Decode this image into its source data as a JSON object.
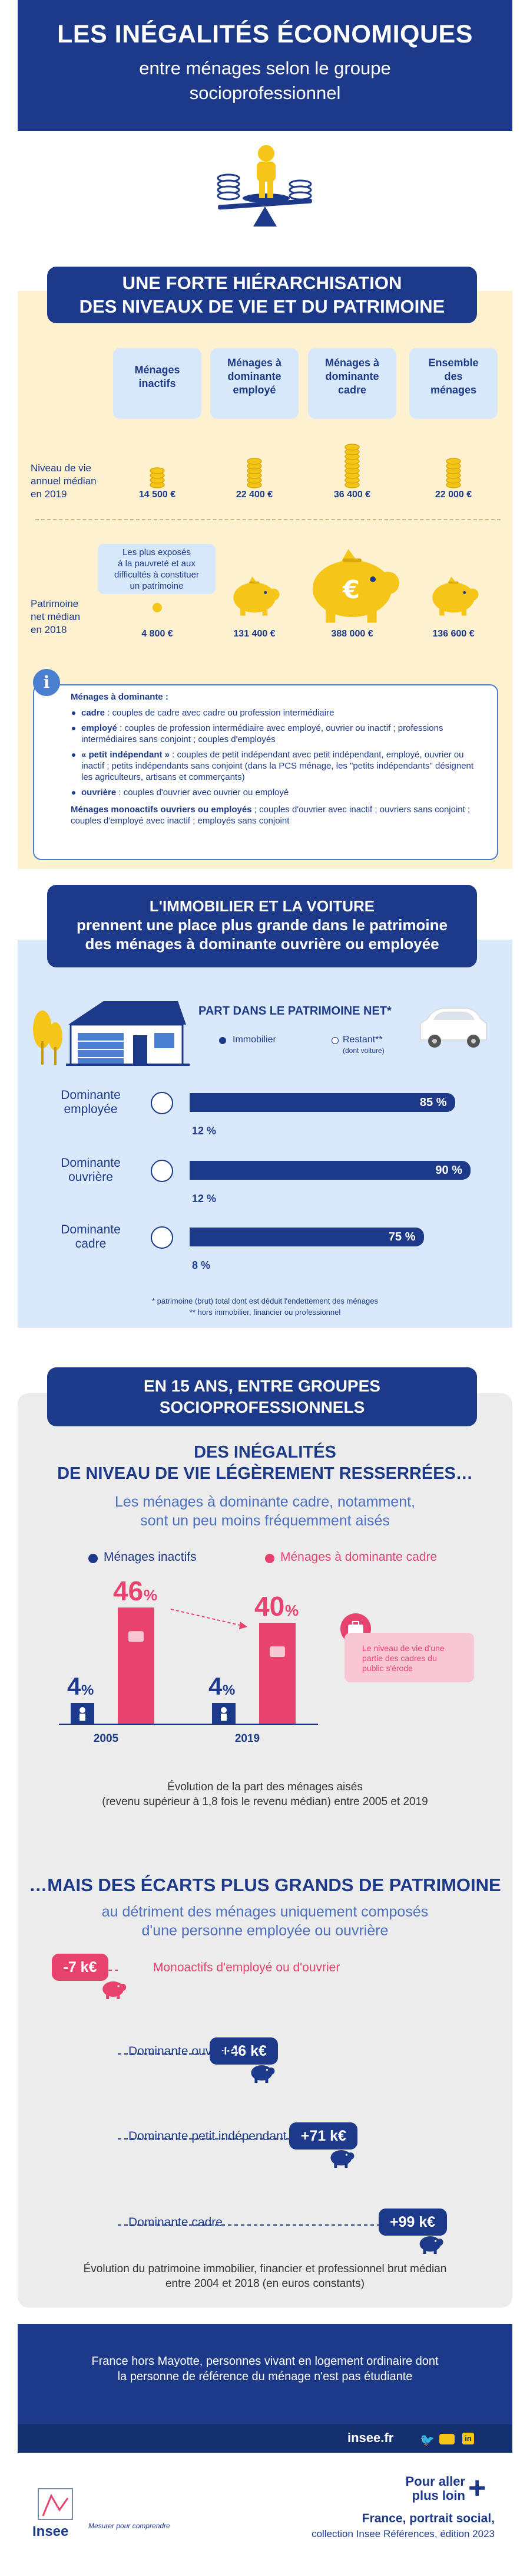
{
  "header": {
    "title": "LES INÉGALITÉS ÉCONOMIQUES",
    "subtitle_line1": "entre ménages selon le groupe",
    "subtitle_line2": "socioprofessionnel"
  },
  "section1": {
    "title_line1": "UNE FORTE HIÉRARCHISATION",
    "title_line2": "DES NIVEAUX DE VIE ET DU PATRIMOINE",
    "categories": [
      {
        "line1": "Ménages",
        "line2": "inactifs",
        "line3": ""
      },
      {
        "line1": "Ménages à",
        "line2": "dominante",
        "line3": "employé"
      },
      {
        "line1": "Ménages à",
        "line2": "dominante",
        "line3": "cadre"
      },
      {
        "line1": "Ensemble",
        "line2": "des",
        "line3": "ménages"
      }
    ],
    "niveau_label": [
      "Niveau de vie",
      "annuel médian",
      "en 2019"
    ],
    "niveau_values": [
      "14 500 €",
      "22 400 €",
      "36 400 €",
      "22 000 €"
    ],
    "patrimoine_label": [
      "Patrimoine",
      "net médian",
      "en 2018"
    ],
    "patrimoine_values": [
      "4 800 €",
      "131 400 €",
      "388 000 €",
      "136 600 €"
    ],
    "exposed_note": [
      "Les plus exposés",
      "à la pauvreté et aux",
      "difficultés à constituer",
      "un patrimoine"
    ],
    "info_title": "Ménages à dominante :",
    "info_items": [
      {
        "key": "cadre",
        "text": " : couples de cadre avec cadre ou profession intermédiaire"
      },
      {
        "key": "employé",
        "text": " : couples de profession intermédiaire avec employé, ouvrier ou inactif ; professions intermédiaires sans conjoint ; couples d'employés"
      },
      {
        "key": "« petit indépendant »",
        "text": " : couples de petit indépendant avec petit indépendant, employé, ouvrier ou inactif ; petits indépendants sans conjoint (dans la PCS ménage, les \"petits indépendants\" désignent les agriculteurs, artisans et commerçants)"
      },
      {
        "key": "ouvrière",
        "text": " : couples d'ouvrier avec ouvrier ou employé"
      }
    ],
    "info_footer_key": "Ménages monoactifs ouvriers ou employés",
    "info_footer_text": " ; couples d'ouvrier avec inactif ; ouvriers sans conjoint ; couples d'employé avec inactif ; employés sans conjoint"
  },
  "section2": {
    "title_line1": "L'IMMOBILIER ET LA VOITURE",
    "title_line2": "prennent une place plus grande dans le patrimoine",
    "title_line3": "des ménages à dominante ouvrière ou employée",
    "chart_title": "PART DANS LE PATRIMOINE NET*",
    "legend_immobilier": "Immobilier",
    "legend_restant": "Restant**",
    "legend_restant_sub": "(dont voiture)",
    "notes": [
      "* patrimoine (brut) total dont est déduit l'endettement des ménages",
      "** hors immobilier, financier ou professionnel"
    ],
    "colors": {
      "immobilier": "#1d3a8a"
    }
  },
  "section3": {
    "title_line1": "EN 15 ANS, ENTRE GROUPES",
    "title_line2": "SOCIOPROFESSIONNELS",
    "subtitle_line1": "DES INÉGALITÉS",
    "subtitle_line2": "DE NIVEAU DE VIE LÉGÈREMENT RESSERRÉES…",
    "lead_line1": "Les ménages à dominante cadre, notamment,",
    "lead_line2": "sont un peu moins fréquemment aisés",
    "legend_inactifs": "Ménages inactifs",
    "legend_cadre": "Ménages à dominante cadre",
    "callout": [
      "Le niveau de vie d'une",
      "partie des cadres du",
      "public s'érode"
    ],
    "caption_line1": "Évolution de la part des ménages aisés",
    "caption_line2": "(revenu supérieur à 1,8 fois le revenu médian) entre 2005 et 2019",
    "colors": {
      "inactifs": "#1d3a8a",
      "cadre": "#e8436f"
    }
  },
  "section4": {
    "title": "…MAIS DES ÉCARTS PLUS GRANDS DE PATRIMOINE",
    "subtitle_line1": "au détriment des ménages uniquement composés",
    "subtitle_line2": "d'une personne employée ou ouvrière",
    "caption_line1": "Évolution du patrimoine immobilier, financier et professionnel brut médian",
    "caption_line2": "entre 2004 et 2018 (en euros constants)"
  },
  "footer": {
    "scope_line1": "France hors Mayotte, personnes vivant en logement ordinaire dont",
    "scope_line2": "la personne de référence du ménage n'est pas étudiante",
    "site": "insee.fr",
    "more_line1": "Pour aller",
    "more_line2": "plus loin",
    "pub_line1": "France, portrait social,",
    "pub_line2": "collection Insee Références, édition 2023",
    "logo": "Insee",
    "tagline": "Mesurer pour comprendre"
  },
  "chart_data": [
    {
      "type": "bar",
      "categories": [
        "Dominante employée",
        "Dominante ouvrière",
        "Dominante cadre"
      ],
      "series": [
        {
          "name": "Immobilier",
          "values": [
            85,
            90,
            75
          ]
        },
        {
          "name": "Restant** (dont voiture)",
          "values": [
            12,
            12,
            8
          ]
        }
      ],
      "unit": "%"
    },
    {
      "type": "bar",
      "categories": [
        "2005",
        "2019"
      ],
      "series": [
        {
          "name": "Ménages inactifs",
          "values": [
            4,
            4
          ]
        },
        {
          "name": "Ménages à dominante cadre",
          "values": [
            46,
            40
          ]
        }
      ],
      "unit": "%"
    },
    {
      "type": "bar",
      "categories": [
        "Monoactifs d'employé ou d'ouvrier",
        "Dominante ouvrière",
        "Dominante petit indépendant",
        "Dominante cadre"
      ],
      "values": [
        -7,
        46,
        71,
        99
      ],
      "labels": [
        "-7 k€",
        "+46 k€",
        "+71 k€",
        "+99 k€"
      ],
      "unit": "k€"
    }
  ]
}
